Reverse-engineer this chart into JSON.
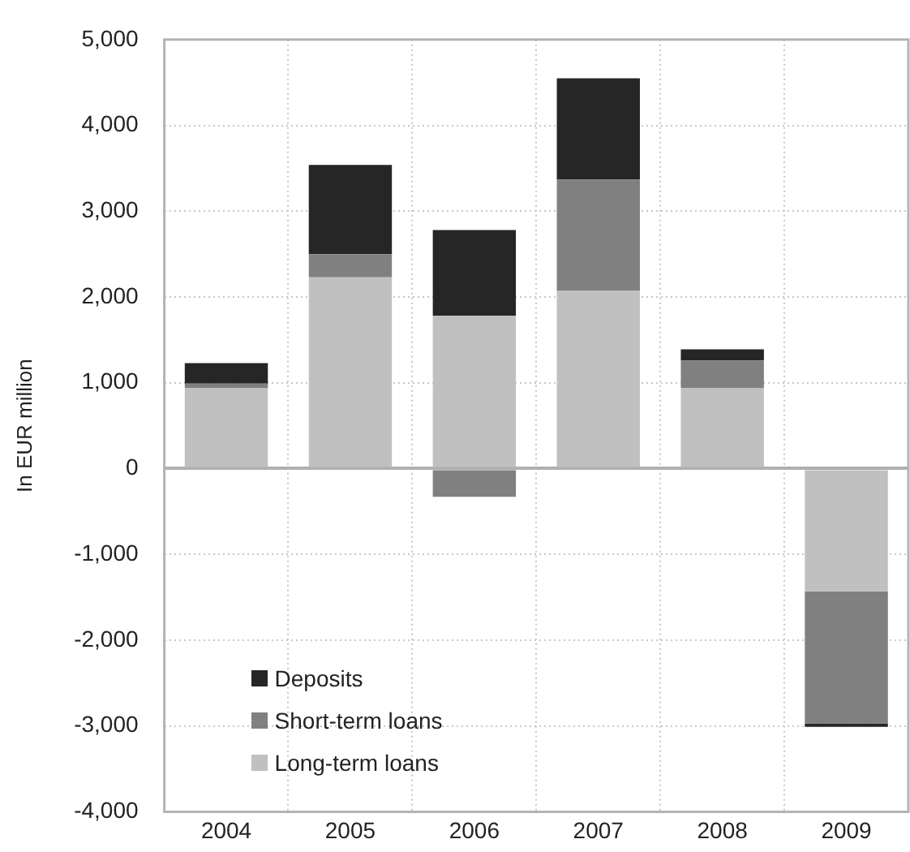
{
  "chart_data": {
    "type": "bar",
    "stacked": true,
    "ylabel": "In EUR million",
    "categories": [
      "2004",
      "2005",
      "2006",
      "2007",
      "2008",
      "2009"
    ],
    "series": [
      {
        "name": "Long-term loans",
        "color": "#c0c0c0",
        "values": [
          940,
          2230,
          1780,
          2070,
          940,
          -1430
        ]
      },
      {
        "name": "Short-term loans",
        "color": "#808080",
        "values": [
          50,
          270,
          -330,
          1300,
          320,
          -1540
        ]
      },
      {
        "name": "Deposits",
        "color": "#262626",
        "values": [
          240,
          1040,
          1000,
          1180,
          130,
          -40
        ]
      }
    ],
    "ylim": [
      -4000,
      5000
    ],
    "yticks": [
      {
        "value": -4000,
        "label": "-4,000"
      },
      {
        "value": -3000,
        "label": "-3,000"
      },
      {
        "value": -2000,
        "label": "-2,000"
      },
      {
        "value": -1000,
        "label": "-1,000"
      },
      0,
      {
        "value": 1000,
        "label": "1,000"
      },
      {
        "value": 2000,
        "label": "2,000"
      },
      {
        "value": 3000,
        "label": "3,000"
      },
      {
        "value": 4000,
        "label": "4,000"
      },
      {
        "value": 5000,
        "label": "5,000"
      }
    ],
    "grid": true,
    "legend": "bottom left"
  }
}
